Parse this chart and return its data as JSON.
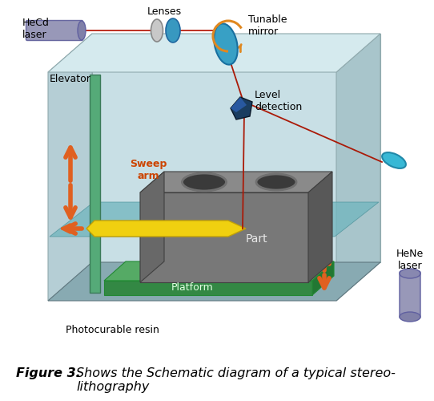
{
  "figure_caption_bold": "Figure 3.",
  "figure_caption_normal": "Shows the Schematic diagram of a typical stereo-\nlithography",
  "caption_fontsize": 11.5,
  "background_color": "#ffffff",
  "labels": {
    "hecd_laser": "HeCd\nlaser",
    "lenses": "Lenses",
    "tunable_mirror": "Tunable\nmirror",
    "elevator": "Elevator",
    "sweep_arm": "Sweep\narm",
    "level_detection": "Level\ndetection",
    "part": "Part",
    "platform": "Platform",
    "photocurable_resin": "Photocurable resin",
    "hene_laser": "HeNe\nlaser"
  },
  "colors": {
    "box_back": "#cce0e4",
    "box_left": "#b8d4d8",
    "box_right": "#a8c8ce",
    "box_floor": "#88aab0",
    "resin": "#70b0b8",
    "platform_top": "#55aa65",
    "platform_side": "#338844",
    "part_top": "#888888",
    "part_left": "#686868",
    "part_front": "#777777",
    "part_right": "#585858",
    "elevator": "#55aa78",
    "sweep_yellow": "#f5d520",
    "sweep_orange": "#e87820",
    "arrow_orange": "#e06020",
    "hecd_body": "#9898b8",
    "hecd_end": "#8080a8",
    "hene_body": "#9898b8",
    "lens1": "#c8c8c8",
    "lens2": "#3898c0",
    "mirror_blue": "#38a0c5",
    "mirror2_blue": "#38b8d5",
    "level_det": "#1a3d60",
    "line_red": "#aa2010",
    "text_black": "#000000",
    "text_white": "#f0f0f0",
    "text_sweep": "#cc5500"
  },
  "figsize": [
    5.42,
    5.0
  ],
  "dpi": 100
}
